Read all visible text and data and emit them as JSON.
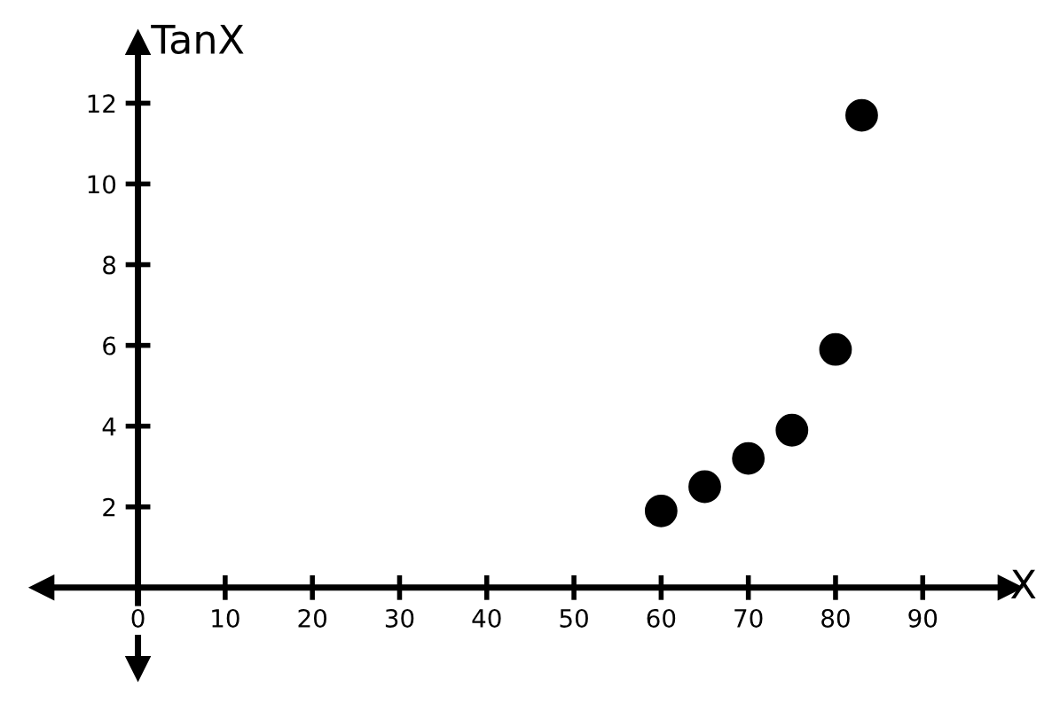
{
  "chart_data": {
    "type": "scatter",
    "xlabel": "X",
    "ylabel": "TanX",
    "x": [
      60,
      65,
      70,
      75,
      80,
      83
    ],
    "values": [
      1.9,
      2.5,
      3.2,
      3.9,
      5.9,
      11.7
    ],
    "color": "#000000",
    "marker": "circle",
    "xlim": [
      -11,
      100
    ],
    "ylim": [
      -2,
      13.5
    ],
    "xticks": [
      0,
      10,
      20,
      30,
      40,
      50,
      60,
      70,
      80,
      90
    ],
    "yticks": [
      2,
      4,
      6,
      8,
      10,
      12
    ],
    "grid": false
  }
}
